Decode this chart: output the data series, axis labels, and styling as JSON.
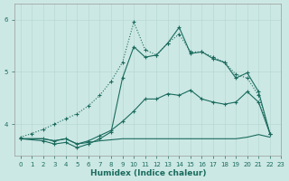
{
  "bg_color": "#cce8e4",
  "line_color": "#1a6b5e",
  "grid_color": "#b8d8d4",
  "xlabel": "Humidex (Indice chaleur)",
  "xlim": [
    -0.5,
    23
  ],
  "ylim": [
    3.4,
    6.3
  ],
  "yticks": [
    4,
    5,
    6
  ],
  "ytick_labels": [
    "4",
    "5",
    "6"
  ],
  "xtick_labels": [
    "0",
    "1",
    "2",
    "3",
    "4",
    "5",
    "6",
    "7",
    "8",
    "9",
    "10",
    "11",
    "12",
    "13",
    "14",
    "15",
    "16",
    "17",
    "18",
    "19",
    "20",
    "21",
    "22",
    "23"
  ],
  "line_dotted_x": [
    0,
    1,
    2,
    3,
    4,
    5,
    6,
    7,
    8,
    9,
    10,
    11,
    12,
    13,
    14,
    15,
    16,
    17,
    18,
    19,
    20,
    21,
    22
  ],
  "line_dotted_y": [
    3.75,
    3.82,
    3.9,
    4.0,
    4.1,
    4.2,
    4.35,
    4.55,
    4.82,
    5.18,
    5.95,
    5.42,
    5.32,
    5.55,
    5.72,
    5.38,
    5.38,
    5.28,
    5.18,
    4.95,
    4.88,
    4.55,
    3.82
  ],
  "line_mid_x": [
    0,
    2,
    3,
    4,
    5,
    6,
    7,
    8,
    9,
    10,
    11,
    12,
    13,
    14,
    15,
    16,
    17,
    18,
    19,
    20,
    21,
    22
  ],
  "line_mid_y": [
    3.72,
    3.72,
    3.68,
    3.72,
    3.62,
    3.68,
    3.78,
    3.88,
    4.05,
    4.25,
    4.48,
    4.48,
    4.58,
    4.55,
    4.65,
    4.48,
    4.42,
    4.38,
    4.42,
    4.62,
    4.42,
    3.82
  ],
  "line_upper_x": [
    0,
    2,
    3,
    4,
    5,
    6,
    7,
    8,
    9,
    10,
    11,
    12,
    13,
    14,
    15,
    16,
    17,
    18,
    19,
    20,
    21,
    22
  ],
  "line_upper_y": [
    3.72,
    3.68,
    3.62,
    3.65,
    3.55,
    3.62,
    3.72,
    3.85,
    4.88,
    5.48,
    5.28,
    5.32,
    5.55,
    5.85,
    5.35,
    5.38,
    5.25,
    5.18,
    4.88,
    4.98,
    4.62,
    3.82
  ],
  "line_flat_x": [
    0,
    1,
    2,
    3,
    4,
    5,
    6,
    7,
    8,
    9,
    10,
    11,
    12,
    13,
    14,
    15,
    16,
    17,
    18,
    19,
    20,
    21,
    22
  ],
  "line_flat_y": [
    3.72,
    3.72,
    3.72,
    3.68,
    3.72,
    3.62,
    3.65,
    3.68,
    3.7,
    3.72,
    3.72,
    3.72,
    3.72,
    3.72,
    3.72,
    3.72,
    3.72,
    3.72,
    3.72,
    3.72,
    3.75,
    3.8,
    3.75
  ]
}
